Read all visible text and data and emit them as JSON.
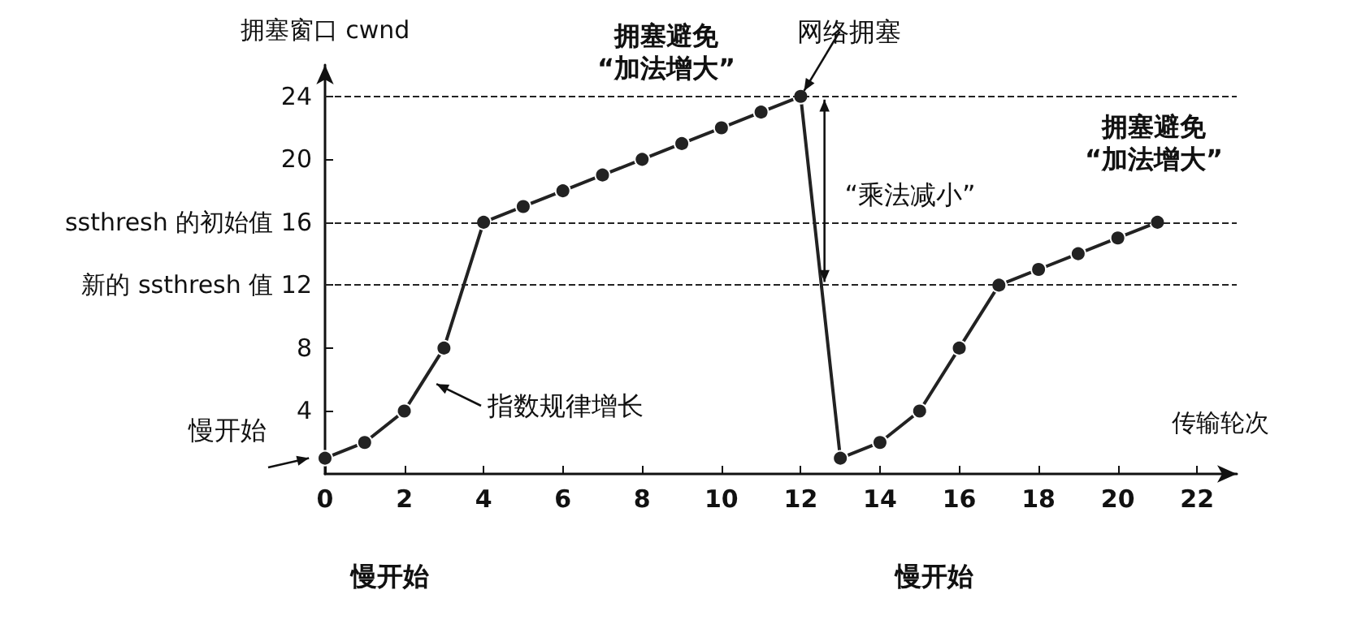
{
  "chart_data": {
    "type": "line",
    "ylabel": "拥塞窗口 cwnd",
    "xlabel": "传输轮次",
    "x": [
      0,
      1,
      2,
      3,
      4,
      5,
      6,
      7,
      8,
      9,
      10,
      11,
      12,
      13,
      14,
      15,
      16,
      17,
      18,
      19,
      20,
      21
    ],
    "series": [
      {
        "color": "#222222",
        "values": [
          1,
          2,
          4,
          8,
          16,
          17,
          18,
          19,
          20,
          21,
          22,
          23,
          24,
          1,
          2,
          4,
          8,
          12,
          13,
          14,
          15,
          16
        ]
      }
    ],
    "xlim": [
      0,
      23
    ],
    "xticks": [
      0,
      2,
      4,
      6,
      8,
      10,
      12,
      14,
      16,
      18,
      20,
      22
    ],
    "ylim": [
      0,
      26
    ],
    "yticks": [
      4,
      8,
      {
        "value": 12,
        "label": "新的 ssthresh 值 12"
      },
      {
        "value": 16,
        "label": "ssthresh 的初始值 16"
      },
      20,
      24
    ],
    "ref_lines": [
      {
        "axis": "y",
        "value": 24,
        "line_style": "dashed"
      },
      {
        "axis": "y",
        "value": 16,
        "line_style": "dashed"
      },
      {
        "axis": "y",
        "value": 12,
        "line_style": "dashed"
      }
    ],
    "annotations": [
      "慢开始",
      "指数规律增长",
      "拥塞避免\n“加法增大”",
      {
        "text": "网络拥塞",
        "x": 12,
        "y": 24
      },
      "“乘法减小”",
      "拥塞避免\n“加法增大”",
      "慢开始",
      "慢开始"
    ],
    "marker": "circle",
    "line_style": "solid",
    "grid": false
  }
}
